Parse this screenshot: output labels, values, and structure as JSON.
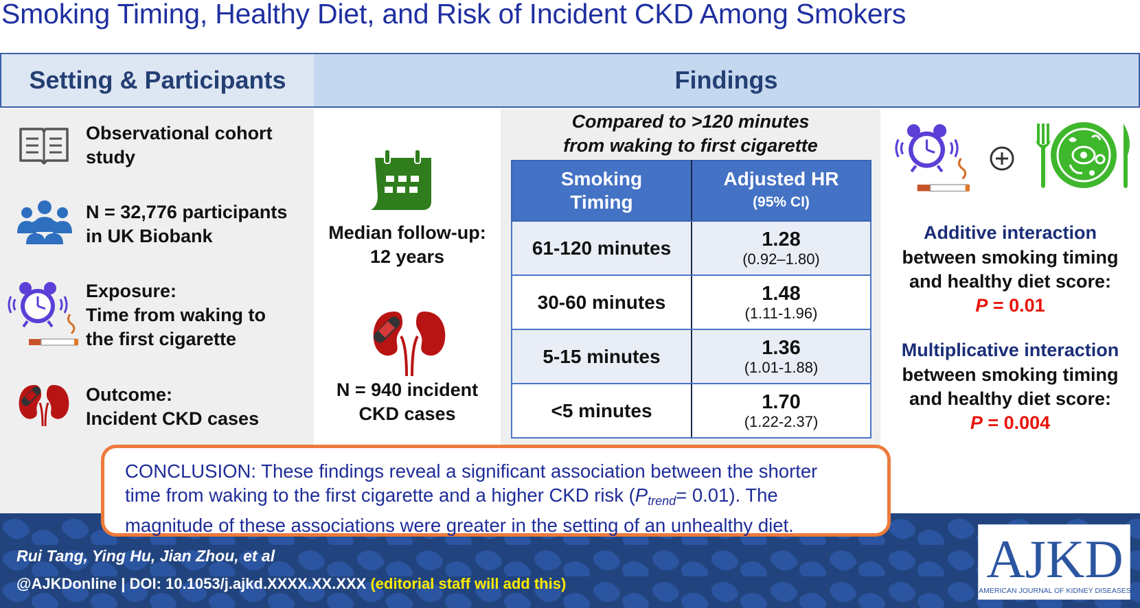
{
  "title": "Smoking Timing, Healthy Diet, and Risk of Incident CKD Among Smokers",
  "headers": {
    "left": "Setting & Participants",
    "right": "Findings"
  },
  "left_items": [
    {
      "icon": "open-book-icon",
      "lines": [
        "Observational cohort",
        "study"
      ]
    },
    {
      "icon": "people-group-icon",
      "lines": [
        "N = 32,776 participants",
        "in UK Biobank"
      ]
    },
    {
      "icon": "alarm-clock-cigarette-icon",
      "lines": [
        "Exposure:",
        "Time from waking to",
        "the first cigarette"
      ]
    },
    {
      "icon": "kidney-icon",
      "lines": [
        "Outcome:",
        "Incident CKD cases"
      ]
    }
  ],
  "middle": {
    "followup": [
      "Median follow-up:",
      "12 years"
    ],
    "cases": [
      "N = 940 incident",
      "CKD cases"
    ]
  },
  "table": {
    "heading": [
      "Compared to >120 minutes",
      "from waking to first cigarette"
    ],
    "col1": [
      "Smoking",
      "Timing"
    ],
    "col2": "Adjusted HR",
    "col2_sub": "(95% CI)",
    "rows": [
      {
        "timing": "61-120 minutes",
        "hr": "1.28",
        "ci": "(0.92–1.80)"
      },
      {
        "timing": "30-60 minutes",
        "hr": "1.48",
        "ci": "(1.11-1.96)"
      },
      {
        "timing": "5-15 minutes",
        "hr": "1.36",
        "ci": "(1.01-1.88)"
      },
      {
        "timing": "<5 minutes",
        "hr": "1.70",
        "ci": "(1.22-2.37)"
      }
    ]
  },
  "right": {
    "additive": {
      "title": "Additive interaction",
      "lines": [
        "between smoking timing",
        "and healthy diet score:"
      ],
      "p_label": "P",
      "p_value": " = 0.01"
    },
    "multiplicative": {
      "title": "Multiplicative interaction",
      "lines": [
        "between smoking timing",
        "and healthy diet score:"
      ],
      "p_label": "P",
      "p_value": " = 0.004"
    }
  },
  "conclusion": {
    "line1": "CONCLUSION: These findings reveal a significant association between the shorter",
    "line2a": "time from waking to the first cigarette and a higher CKD risk (",
    "p": "P",
    "p_sub": "trend",
    "line2b": "= 0.01). The",
    "line3": "magnitude of these associations were greater in the setting of an unhealthy diet."
  },
  "footer": {
    "authors": "Rui Tang, Ying Hu, Jian Zhou, et al",
    "doi": "@AJKDonline | DOI: 10.1053/j.ajkd.XXXX.XX.XXX",
    "doi_note": "(editorial staff will add this)",
    "logo_text": "AJKD",
    "logo_sub": "AMERICAN JOURNAL OF KIDNEY DISEASES"
  },
  "colors": {
    "title": "#1f2fa0",
    "header_text": "#243f73",
    "table_header": "#4472c4",
    "conclusion_border": "#ec7a3b",
    "footer_bg": "#22447e",
    "p_value": "#e8140c",
    "diet_green": "#3fb72c",
    "calendar_green": "#2f7d1c",
    "kidney_red": "#b81414",
    "clock_purple": "#5b3fd6"
  }
}
